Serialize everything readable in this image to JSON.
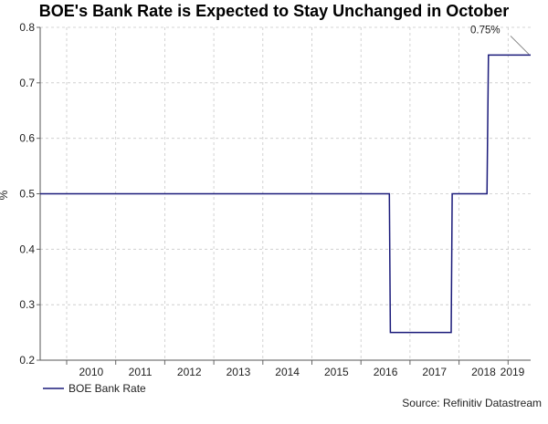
{
  "chart_data": {
    "type": "line",
    "title": "BOE's Bank Rate is Expected to Stay Unchanged in October",
    "ylabel": "%",
    "xlabel": "",
    "ylim": [
      0.2,
      0.8
    ],
    "yticks": [
      "0.2",
      "0.3",
      "0.4",
      "0.5",
      "0.6",
      "0.7",
      "0.8"
    ],
    "xlim": [
      2009.46,
      2019.46
    ],
    "xticks": [
      "2010",
      "2011",
      "2012",
      "2013",
      "2014",
      "2015",
      "2016",
      "2017",
      "2018",
      "2019"
    ],
    "grid": true,
    "legend_position": "bottom-left",
    "series": [
      {
        "name": "BOE Bank Rate",
        "color": "#1a1a7a",
        "points": [
          {
            "x": 2009.46,
            "y": 0.5
          },
          {
            "x": 2016.58,
            "y": 0.5
          },
          {
            "x": 2016.6,
            "y": 0.25
          },
          {
            "x": 2017.84,
            "y": 0.25
          },
          {
            "x": 2017.86,
            "y": 0.5
          },
          {
            "x": 2018.57,
            "y": 0.5
          },
          {
            "x": 2018.6,
            "y": 0.75
          },
          {
            "x": 2019.46,
            "y": 0.75
          }
        ]
      }
    ],
    "annotations": [
      {
        "text": "0.75%",
        "x": 2019.46,
        "y": 0.75
      }
    ],
    "source": "Source: Refinitiv Datastream"
  }
}
